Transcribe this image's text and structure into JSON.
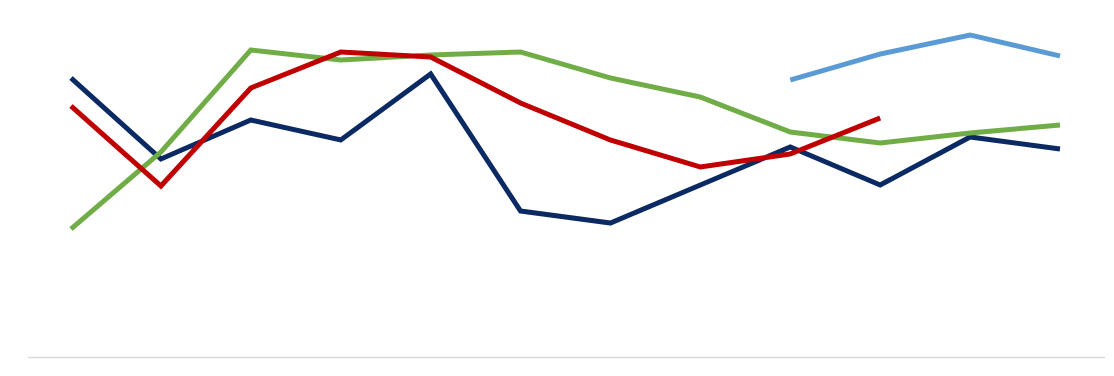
{
  "chart_data": {
    "type": "line",
    "categories": [
      null,
      null,
      null,
      null,
      null,
      null,
      null,
      null,
      null,
      null,
      null,
      null
    ],
    "ylim": [
      0,
      340
    ],
    "series": [
      {
        "color": "#0b2a63",
        "values": [
          279,
          198,
          237,
          217,
          283,
          146,
          134,
          172,
          210,
          172,
          220,
          208
        ]
      },
      {
        "color": "#70ad47",
        "values": [
          128,
          205,
          307,
          297,
          302,
          305,
          279,
          260,
          225,
          214,
          224,
          232
        ]
      },
      {
        "color": "#c00000",
        "values": [
          251,
          171,
          269,
          305,
          300,
          254,
          217,
          190,
          203,
          239,
          null,
          null
        ]
      },
      {
        "color": "#5b9bd5",
        "values": [
          null,
          null,
          null,
          null,
          null,
          null,
          null,
          null,
          277,
          303,
          322,
          301
        ]
      }
    ]
  }
}
